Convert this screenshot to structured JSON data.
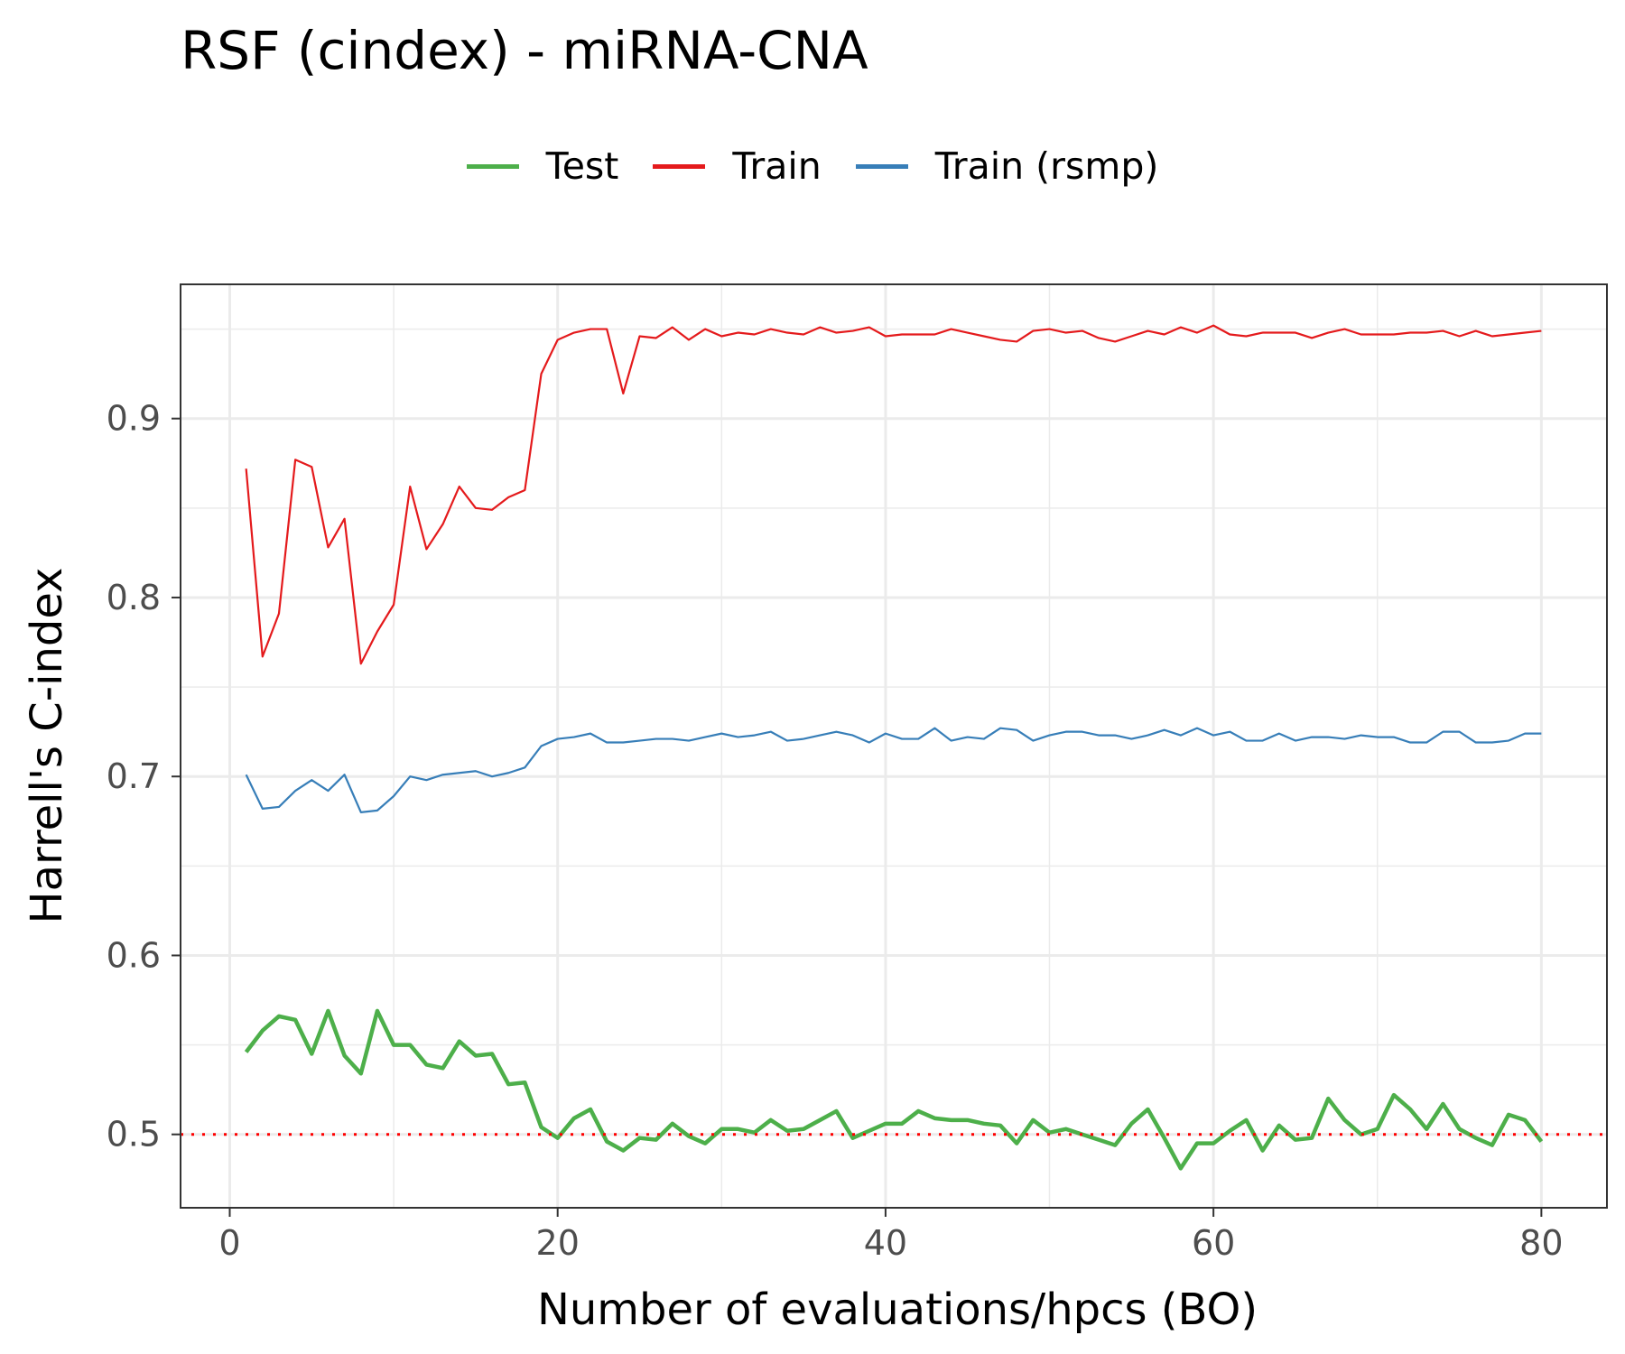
{
  "chart_data": {
    "type": "line",
    "title": "RSF (cindex) - miRNA-CNA",
    "xlabel": "Number of evaluations/hpcs (BO)",
    "ylabel": "Harrell's C-index",
    "xlim": [
      -3,
      84
    ],
    "ylim": [
      0.459,
      0.975
    ],
    "x_ticks": [
      0,
      20,
      40,
      60,
      80
    ],
    "y_ticks": [
      0.5,
      0.6,
      0.7,
      0.8,
      0.9
    ],
    "x_tick_labels": [
      "0",
      "20",
      "40",
      "60",
      "80"
    ],
    "y_tick_labels": [
      "0.5",
      "0.6",
      "0.7",
      "0.8",
      "0.9"
    ],
    "grid": true,
    "legend_position": "top",
    "reference_line": {
      "y": 0.5,
      "style": "dotted",
      "color": "#ff0000"
    },
    "x": [
      1,
      2,
      3,
      4,
      5,
      6,
      7,
      8,
      9,
      10,
      11,
      12,
      13,
      14,
      15,
      16,
      17,
      18,
      19,
      20,
      21,
      22,
      23,
      24,
      25,
      26,
      27,
      28,
      29,
      30,
      31,
      32,
      33,
      34,
      35,
      36,
      37,
      38,
      39,
      40,
      41,
      42,
      43,
      44,
      45,
      46,
      47,
      48,
      49,
      50,
      51,
      52,
      53,
      54,
      55,
      56,
      57,
      58,
      59,
      60,
      61,
      62,
      63,
      64,
      65,
      66,
      67,
      68,
      69,
      70,
      71,
      72,
      73,
      74,
      75,
      76,
      77,
      78,
      79,
      80
    ],
    "series": [
      {
        "name": "Test",
        "color": "#4daf4a",
        "width": 4.5,
        "values": [
          0.546,
          0.558,
          0.566,
          0.564,
          0.545,
          0.569,
          0.544,
          0.534,
          0.569,
          0.55,
          0.55,
          0.539,
          0.537,
          0.552,
          0.544,
          0.545,
          0.528,
          0.529,
          0.504,
          0.498,
          0.509,
          0.514,
          0.496,
          0.491,
          0.498,
          0.497,
          0.506,
          0.499,
          0.495,
          0.503,
          0.503,
          0.501,
          0.508,
          0.502,
          0.503,
          0.508,
          0.513,
          0.498,
          0.502,
          0.506,
          0.506,
          0.513,
          0.509,
          0.508,
          0.508,
          0.506,
          0.505,
          0.495,
          0.508,
          0.501,
          0.503,
          0.5,
          0.497,
          0.494,
          0.506,
          0.514,
          0.498,
          0.481,
          0.495,
          0.495,
          0.502,
          0.508,
          0.491,
          0.505,
          0.497,
          0.498,
          0.52,
          0.508,
          0.5,
          0.503,
          0.522,
          0.514,
          0.503,
          0.517,
          0.503,
          0.498,
          0.494,
          0.511,
          0.508,
          0.496
        ]
      },
      {
        "name": "Train",
        "color": "#e41a1c",
        "width": 2.2,
        "values": [
          0.872,
          0.767,
          0.791,
          0.877,
          0.873,
          0.828,
          0.844,
          0.763,
          0.781,
          0.796,
          0.862,
          0.827,
          0.841,
          0.862,
          0.85,
          0.849,
          0.856,
          0.86,
          0.925,
          0.944,
          0.948,
          0.95,
          0.95,
          0.914,
          0.946,
          0.945,
          0.951,
          0.944,
          0.95,
          0.946,
          0.948,
          0.947,
          0.95,
          0.948,
          0.947,
          0.951,
          0.948,
          0.949,
          0.951,
          0.946,
          0.947,
          0.947,
          0.947,
          0.95,
          0.948,
          0.946,
          0.944,
          0.943,
          0.949,
          0.95,
          0.948,
          0.949,
          0.945,
          0.943,
          0.946,
          0.949,
          0.947,
          0.951,
          0.948,
          0.952,
          0.947,
          0.946,
          0.948,
          0.948,
          0.948,
          0.945,
          0.948,
          0.95,
          0.947,
          0.947,
          0.947,
          0.948,
          0.948,
          0.949,
          0.946,
          0.949,
          0.946,
          0.947,
          0.948,
          0.949
        ]
      },
      {
        "name": "Train (rsmp)",
        "color": "#377eb8",
        "width": 2.2,
        "values": [
          0.701,
          0.682,
          0.683,
          0.692,
          0.698,
          0.692,
          0.701,
          0.68,
          0.681,
          0.689,
          0.7,
          0.698,
          0.701,
          0.702,
          0.703,
          0.7,
          0.702,
          0.705,
          0.717,
          0.721,
          0.722,
          0.724,
          0.719,
          0.719,
          0.72,
          0.721,
          0.721,
          0.72,
          0.722,
          0.724,
          0.722,
          0.723,
          0.725,
          0.72,
          0.721,
          0.723,
          0.725,
          0.723,
          0.719,
          0.724,
          0.721,
          0.721,
          0.727,
          0.72,
          0.722,
          0.721,
          0.727,
          0.726,
          0.72,
          0.723,
          0.725,
          0.725,
          0.723,
          0.723,
          0.721,
          0.723,
          0.726,
          0.723,
          0.727,
          0.723,
          0.725,
          0.72,
          0.72,
          0.724,
          0.72,
          0.722,
          0.722,
          0.721,
          0.723,
          0.722,
          0.722,
          0.719,
          0.719,
          0.725,
          0.725,
          0.719,
          0.719,
          0.72,
          0.724,
          0.724
        ]
      }
    ]
  }
}
